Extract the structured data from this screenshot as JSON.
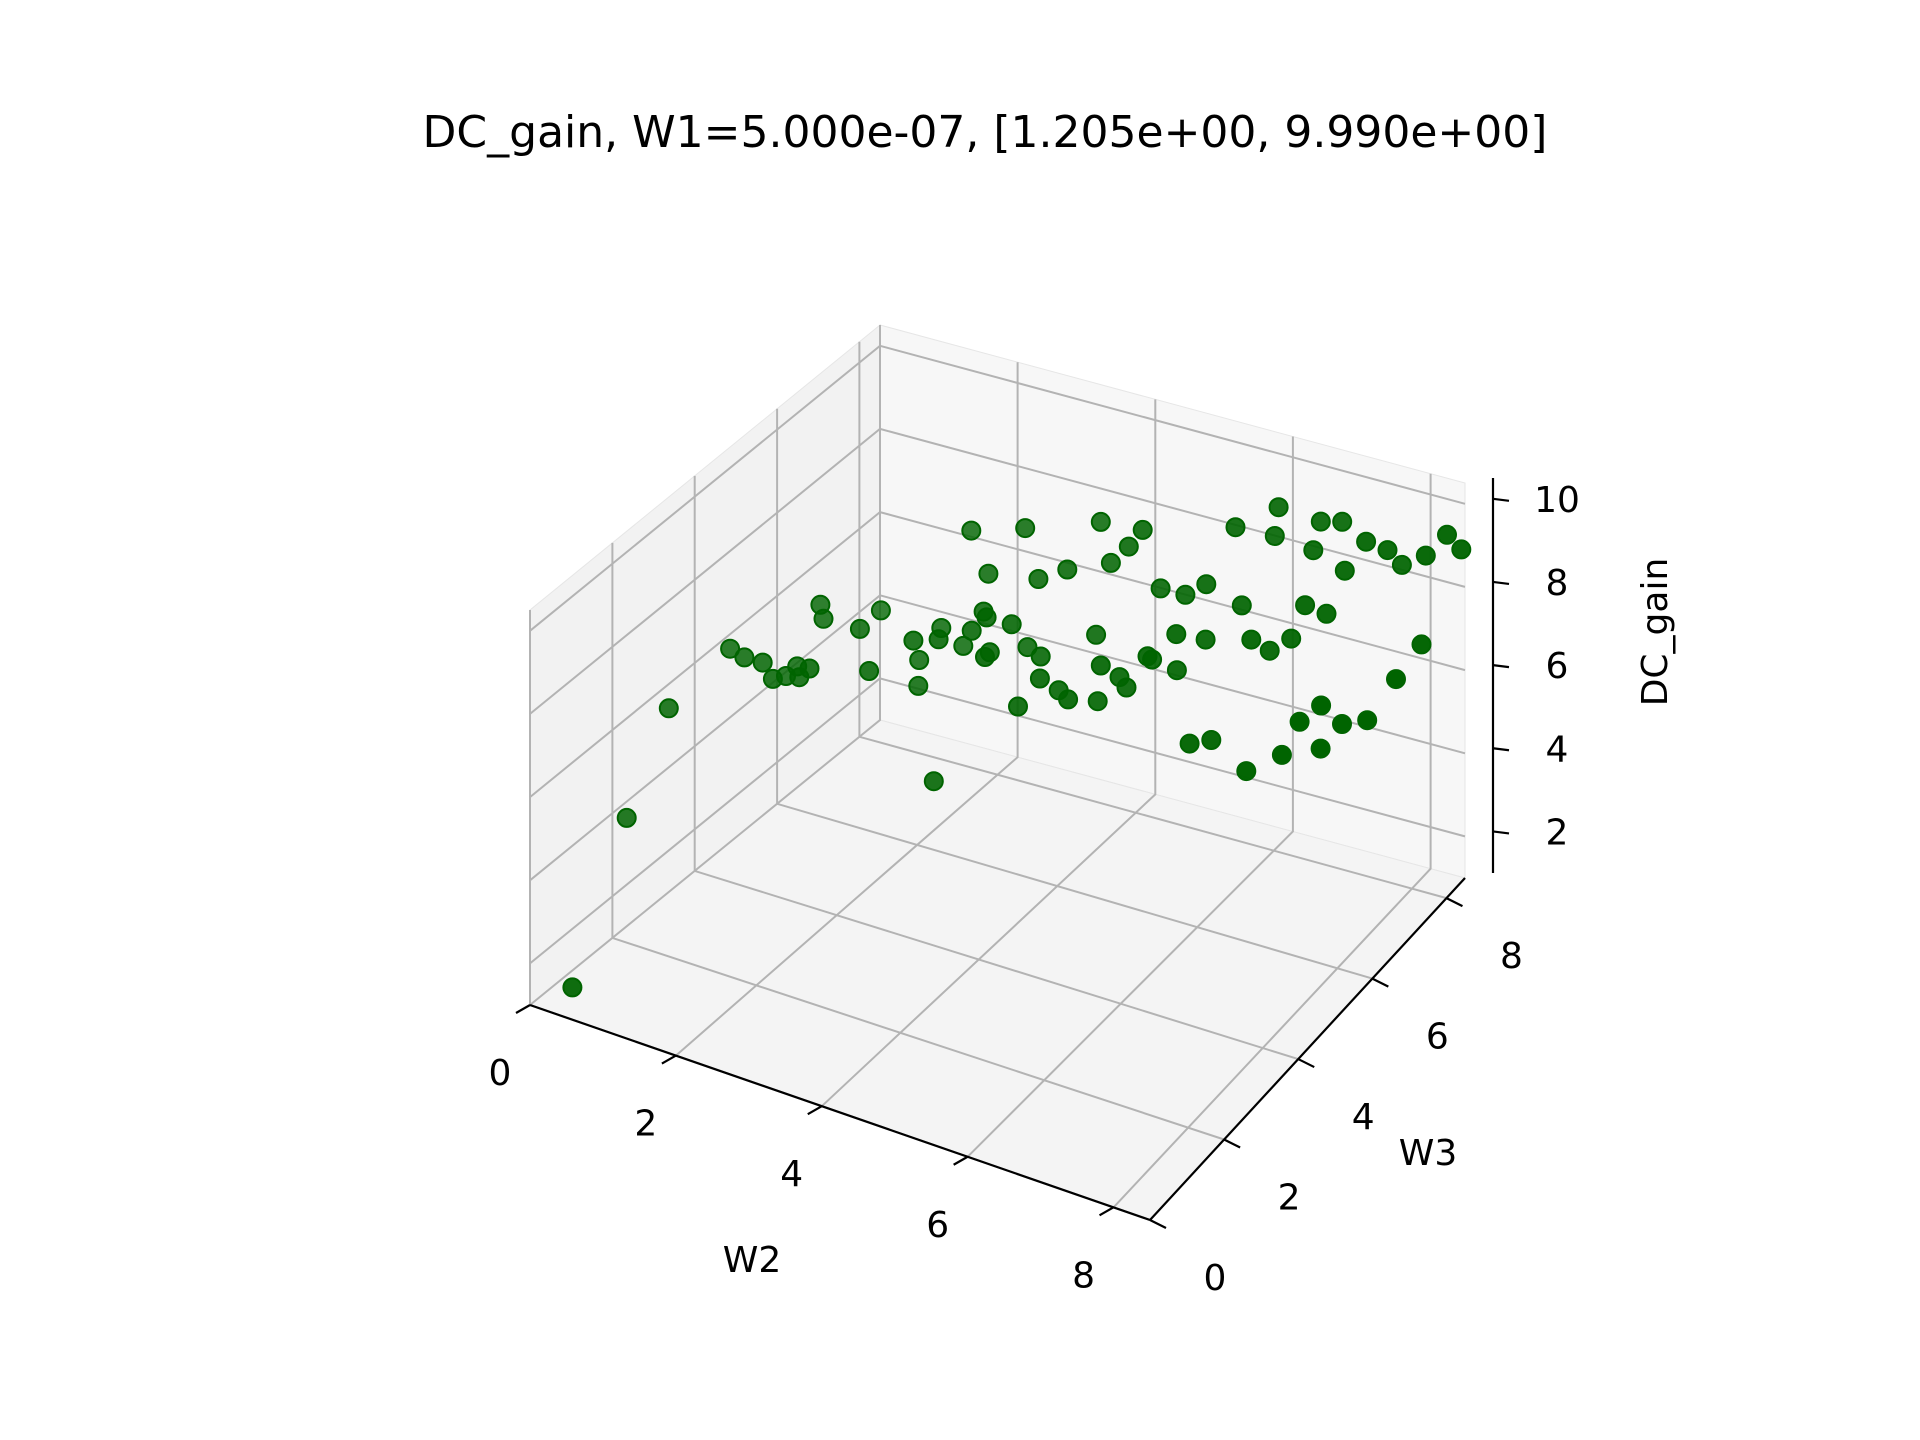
{
  "chart_data": {
    "type": "scatter3d",
    "title": "DC_gain, W1=5.000e-07, [1.205e+00, 9.990e+00]",
    "xlabel": "W2",
    "ylabel": "W3",
    "zlabel": "DC_gain",
    "xlim": [
      0,
      8.5
    ],
    "ylim": [
      0,
      8.5
    ],
    "zlim": [
      1,
      10.5
    ],
    "xticks": [
      0,
      2,
      4,
      6,
      8
    ],
    "yticks": [
      0,
      2,
      4,
      6,
      8
    ],
    "zticks": [
      2,
      4,
      6,
      8,
      10
    ],
    "grid": true,
    "color": "#006400",
    "points": [
      [
        0.3,
        0.5,
        1.2
      ],
      [
        0.2,
        2.0,
        4.0
      ],
      [
        0.5,
        2.5,
        6.4
      ],
      [
        0.9,
        3.3,
        7.4
      ],
      [
        1.1,
        3.3,
        7.3
      ],
      [
        1.3,
        3.4,
        7.2
      ],
      [
        1.5,
        3.3,
        7.0
      ],
      [
        1.7,
        3.6,
        6.9
      ],
      [
        1.9,
        3.5,
        7.3
      ],
      [
        1.7,
        4.2,
        7.8
      ],
      [
        1.6,
        4.3,
        8.0
      ],
      [
        2.1,
        4.4,
        7.6
      ],
      [
        2.4,
        4.1,
        7.0
      ],
      [
        2.8,
        4.5,
        7.6
      ],
      [
        3.1,
        4.6,
        7.7
      ],
      [
        3.4,
        4.9,
        7.8
      ],
      [
        3.7,
        4.7,
        7.5
      ],
      [
        3.5,
        5.1,
        8.0
      ],
      [
        3.8,
        5.2,
        7.9
      ],
      [
        2.7,
        4.8,
        6.2
      ],
      [
        2.0,
        5.1,
        7.4
      ],
      [
        2.6,
        5.0,
        6.6
      ],
      [
        3.2,
        4.3,
        4.6
      ],
      [
        3.0,
        5.4,
        6.8
      ],
      [
        3.8,
        5.6,
        7.0
      ],
      [
        4.3,
        5.5,
        6.3
      ],
      [
        4.5,
        6.1,
        7.2
      ],
      [
        3.9,
        5.7,
        8.6
      ],
      [
        4.2,
        5.9,
        8.8
      ],
      [
        4.4,
        6.4,
        9.6
      ],
      [
        4.6,
        6.3,
        8.8
      ],
      [
        4.8,
        6.4,
        9.2
      ],
      [
        5.0,
        6.4,
        9.7
      ],
      [
        5.2,
        6.5,
        8.3
      ],
      [
        5.5,
        6.6,
        8.2
      ],
      [
        5.1,
        5.8,
        6.5
      ],
      [
        5.3,
        6.1,
        7.0
      ],
      [
        5.6,
        6.2,
        6.8
      ],
      [
        5.9,
        6.4,
        7.5
      ],
      [
        6.2,
        6.8,
        8.1
      ],
      [
        6.6,
        6.8,
        7.2
      ],
      [
        6.8,
        7.0,
        7.4
      ],
      [
        6.4,
        7.3,
        9.4
      ],
      [
        6.9,
        7.6,
        9.7
      ],
      [
        7.1,
        7.8,
        9.6
      ],
      [
        7.3,
        7.5,
        8.8
      ],
      [
        7.5,
        7.7,
        9.4
      ],
      [
        7.7,
        7.9,
        9.1
      ],
      [
        7.8,
        8.1,
        8.6
      ],
      [
        6.0,
        5.8,
        5.6
      ],
      [
        6.2,
        6.0,
        5.6
      ],
      [
        6.7,
        6.0,
        5.1
      ],
      [
        7.1,
        6.2,
        5.5
      ],
      [
        7.3,
        6.3,
        6.3
      ],
      [
        7.5,
        6.5,
        6.6
      ],
      [
        7.6,
        6.3,
        5.8
      ],
      [
        7.8,
        6.5,
        6.3
      ],
      [
        8.0,
        6.8,
        6.2
      ],
      [
        8.2,
        7.2,
        6.9
      ],
      [
        8.3,
        7.7,
        7.3
      ],
      [
        6.5,
        6.5,
        7.7
      ],
      [
        7.2,
        7.2,
        8.0
      ],
      [
        5.4,
        5.8,
        7.4
      ],
      [
        5.7,
        6.0,
        7.9
      ],
      [
        4.9,
        5.5,
        7.2
      ],
      [
        4.6,
        5.2,
        6.5
      ],
      [
        4.2,
        5.2,
        6.8
      ],
      [
        4.0,
        5.0,
        6.2
      ],
      [
        4.1,
        5.4,
        7.1
      ],
      [
        4.8,
        5.6,
        6.2
      ],
      [
        5.0,
        5.8,
        6.7
      ],
      [
        3.6,
        5.0,
        7.3
      ],
      [
        3.4,
        5.2,
        8.0
      ],
      [
        3.3,
        5.5,
        8.6
      ],
      [
        3.0,
        5.6,
        9.4
      ],
      [
        3.6,
        5.9,
        9.5
      ],
      [
        6.0,
        7.0,
        9.7
      ],
      [
        6.4,
        7.4,
        10.0
      ],
      [
        6.9,
        7.4,
        9.2
      ],
      [
        8.4,
        8.2,
        9.5
      ],
      [
        8.5,
        8.4,
        9.0
      ],
      [
        8.2,
        8.0,
        9.1
      ],
      [
        5.8,
        6.6,
        8.6
      ],
      [
        7.0,
        7.0,
        8.3
      ],
      [
        2.8,
        5.2,
        7.3
      ],
      [
        1.4,
        3.8,
        6.6
      ],
      [
        1.5,
        3.9,
        6.8
      ]
    ]
  }
}
